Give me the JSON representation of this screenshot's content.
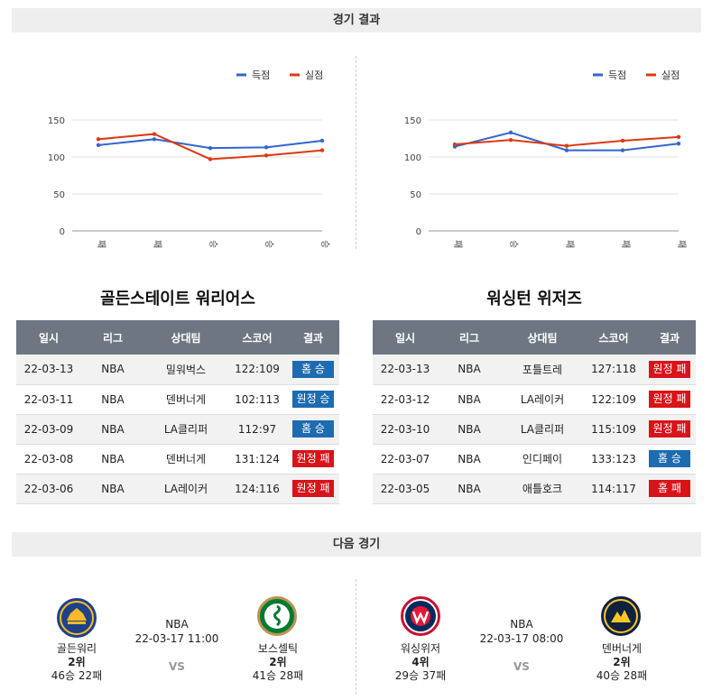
{
  "results_header": "경기 결과",
  "next_header": "다음 경기",
  "legend": {
    "score": "득점",
    "conceded": "실점"
  },
  "colors": {
    "score": "#3366cc",
    "conceded": "#dc3912",
    "grid": "#e0e0e0",
    "table_header": "#6e7681",
    "win": "#1d6bb0",
    "loss": "#d8141a"
  },
  "chart_data": [
    {
      "type": "line",
      "categories": [
        "패",
        "패",
        "승",
        "승",
        "승"
      ],
      "series": [
        {
          "name": "득점",
          "values": [
            116,
            124,
            112,
            113,
            122
          ]
        },
        {
          "name": "실점",
          "values": [
            124,
            131,
            97,
            102,
            109
          ]
        }
      ],
      "ylim": [
        0,
        150
      ],
      "yticks": [
        0,
        50,
        100,
        150
      ],
      "grid": true,
      "legend": "top-right"
    },
    {
      "type": "line",
      "categories": [
        "패",
        "승",
        "패",
        "패",
        "패"
      ],
      "series": [
        {
          "name": "득점",
          "values": [
            114,
            133,
            109,
            109,
            118
          ]
        },
        {
          "name": "실점",
          "values": [
            117,
            123,
            115,
            122,
            127
          ]
        }
      ],
      "ylim": [
        0,
        150
      ],
      "yticks": [
        0,
        50,
        100,
        150
      ],
      "grid": true,
      "legend": "top-right"
    }
  ],
  "table_headers": [
    "일시",
    "리그",
    "상대팀",
    "스코어",
    "결과"
  ],
  "teams": [
    {
      "title": "골든스테이트 워리어스",
      "rows": [
        {
          "date": "22-03-13",
          "league": "NBA",
          "opponent": "밀워벅스",
          "score": "122:109",
          "result": "홈 승",
          "color": "blue"
        },
        {
          "date": "22-03-11",
          "league": "NBA",
          "opponent": "덴버너게",
          "score": "102:113",
          "result": "원정 승",
          "color": "blue"
        },
        {
          "date": "22-03-09",
          "league": "NBA",
          "opponent": "LA클리퍼",
          "score": "112:97",
          "result": "홈 승",
          "color": "blue"
        },
        {
          "date": "22-03-08",
          "league": "NBA",
          "opponent": "덴버너게",
          "score": "131:124",
          "result": "원정 패",
          "color": "red"
        },
        {
          "date": "22-03-06",
          "league": "NBA",
          "opponent": "LA레이커",
          "score": "124:116",
          "result": "원정 패",
          "color": "red"
        }
      ]
    },
    {
      "title": "워싱턴 위저즈",
      "rows": [
        {
          "date": "22-03-13",
          "league": "NBA",
          "opponent": "포틀트레",
          "score": "127:118",
          "result": "원정 패",
          "color": "red"
        },
        {
          "date": "22-03-12",
          "league": "NBA",
          "opponent": "LA레이커",
          "score": "122:109",
          "result": "원정 패",
          "color": "red"
        },
        {
          "date": "22-03-10",
          "league": "NBA",
          "opponent": "LA클리퍼",
          "score": "115:109",
          "result": "원정 패",
          "color": "red"
        },
        {
          "date": "22-03-07",
          "league": "NBA",
          "opponent": "인디페이",
          "score": "133:123",
          "result": "홈 승",
          "color": "blue"
        },
        {
          "date": "22-03-05",
          "league": "NBA",
          "opponent": "애틀호크",
          "score": "114:117",
          "result": "홈 패",
          "color": "red"
        }
      ]
    }
  ],
  "next_games": [
    {
      "league": "NBA",
      "datetime": "22-03-17 11:00",
      "vs": "VS",
      "home": {
        "name": "골든워리",
        "rank": "2위",
        "record": "46승 22패",
        "logo_text": "WARRIORS",
        "logo_color": "#1d428a"
      },
      "away": {
        "name": "보스셀틱",
        "rank": "2위",
        "record": "41승 28패",
        "logo_text": "CELTICS",
        "logo_color": "#007a33"
      }
    },
    {
      "league": "NBA",
      "datetime": "22-03-17 08:00",
      "vs": "VS",
      "home": {
        "name": "워싱위저",
        "rank": "4위",
        "record": "29승 37패",
        "logo_text": "WIZARDS",
        "logo_color": "#c8102e"
      },
      "away": {
        "name": "덴버너게",
        "rank": "2위",
        "record": "40승 28패",
        "logo_text": "NUGGETS",
        "logo_color": "#0e2240"
      }
    }
  ]
}
